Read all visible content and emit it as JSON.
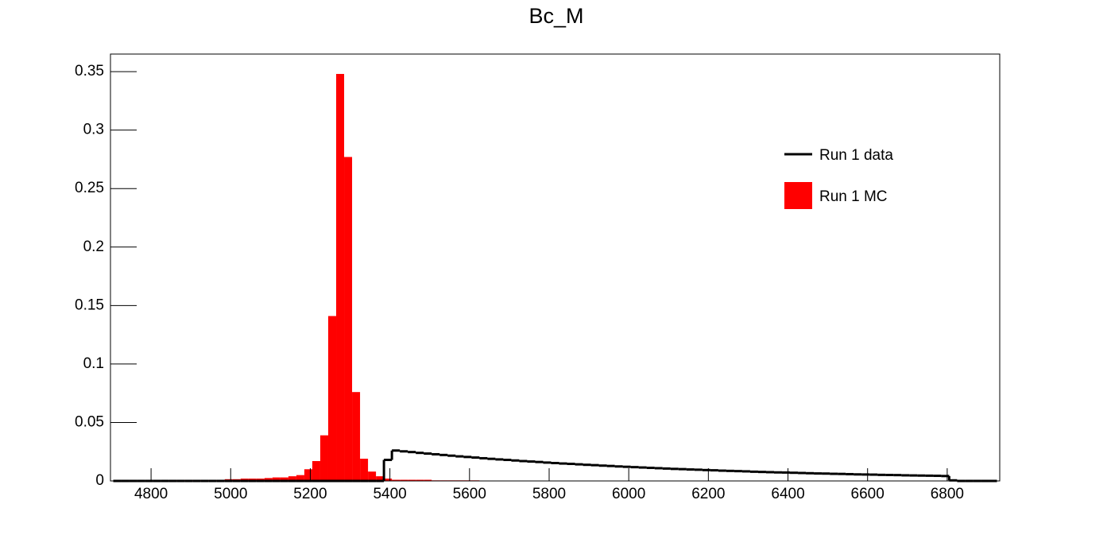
{
  "chart_data": {
    "type": "histogram",
    "title": "Bc_M",
    "bins": [
      4705,
      4725,
      4745,
      4765,
      4785,
      4805,
      4825,
      4845,
      4865,
      4885,
      4905,
      4925,
      4945,
      4965,
      4985,
      5005,
      5025,
      5045,
      5065,
      5085,
      5105,
      5125,
      5145,
      5165,
      5185,
      5205,
      5225,
      5245,
      5265,
      5285,
      5305,
      5325,
      5345,
      5365,
      5385,
      5405,
      5425,
      5445,
      5465,
      5485,
      5505,
      5525,
      5545,
      5565,
      5585,
      5605,
      5625,
      5645,
      5665,
      5685,
      5705,
      5725,
      5745,
      5765,
      5785,
      5805,
      5825,
      5845,
      5865,
      5885,
      5905,
      5925,
      5945,
      5965,
      5985,
      6005,
      6025,
      6045,
      6065,
      6085,
      6105,
      6125,
      6145,
      6165,
      6185,
      6205,
      6225,
      6245,
      6265,
      6285,
      6305,
      6325,
      6345,
      6365,
      6385,
      6405,
      6425,
      6445,
      6465,
      6485,
      6505,
      6525,
      6545,
      6565,
      6585,
      6605,
      6625,
      6645,
      6665,
      6685,
      6705,
      6725,
      6745,
      6765,
      6785,
      6805,
      6825,
      6845,
      6865,
      6885,
      6905,
      6925
    ],
    "series": [
      {
        "name": "Run 1 data",
        "color": "#000000",
        "style": "step",
        "values": [
          0,
          0,
          0,
          0,
          0,
          0,
          0,
          0,
          0,
          0,
          0,
          0,
          0,
          0,
          0,
          0,
          0,
          0,
          0,
          0,
          0,
          0,
          0,
          0,
          0,
          0,
          0,
          0,
          0,
          0,
          0,
          0,
          0,
          0,
          0.018,
          0.026,
          0.0253,
          0.0247,
          0.024,
          0.0234,
          0.0228,
          0.0222,
          0.0216,
          0.021,
          0.0205,
          0.02,
          0.0194,
          0.0189,
          0.0184,
          0.018,
          0.0175,
          0.017,
          0.0166,
          0.0162,
          0.0157,
          0.0153,
          0.0149,
          0.0146,
          0.0142,
          0.0138,
          0.0135,
          0.0131,
          0.0128,
          0.0124,
          0.0121,
          0.0118,
          0.0115,
          0.0112,
          0.0109,
          0.0106,
          0.0103,
          0.0101,
          0.0098,
          0.0096,
          0.0093,
          0.0091,
          0.0088,
          0.0086,
          0.0084,
          0.0082,
          0.0079,
          0.0077,
          0.0075,
          0.0073,
          0.0072,
          0.007,
          0.0068,
          0.0066,
          0.0064,
          0.0063,
          0.0061,
          0.006,
          0.0058,
          0.0056,
          0.0055,
          0.0054,
          0.0052,
          0.0051,
          0.005,
          0.0048,
          0.0047,
          0.0046,
          0.0045,
          0.0044,
          0.0042,
          0.0005,
          0,
          0,
          0,
          0,
          0
        ]
      },
      {
        "name": "Run 1 MC",
        "color": "#ff0000",
        "style": "filled",
        "values": [
          0,
          0,
          0,
          0,
          0,
          0,
          0.0005,
          0.0005,
          0.001,
          0.001,
          0.001,
          0.001,
          0.001,
          0.001,
          0.0015,
          0.0015,
          0.002,
          0.002,
          0.002,
          0.0025,
          0.003,
          0.003,
          0.004,
          0.005,
          0.01,
          0.017,
          0.039,
          0.141,
          0.348,
          0.277,
          0.076,
          0.019,
          0.008,
          0.004,
          0.002,
          0.001,
          0.001,
          0.001,
          0.001,
          0.001,
          0.0005,
          0.0005,
          0.0005,
          0.0005,
          0.0005,
          0.0005,
          0,
          0,
          0,
          0,
          0,
          0,
          0,
          0,
          0,
          0,
          0,
          0,
          0,
          0,
          0,
          0,
          0,
          0,
          0,
          0,
          0,
          0,
          0,
          0,
          0,
          0,
          0,
          0,
          0,
          0,
          0,
          0,
          0,
          0,
          0,
          0,
          0,
          0,
          0,
          0,
          0,
          0,
          0,
          0,
          0,
          0,
          0,
          0,
          0,
          0,
          0,
          0,
          0,
          0,
          0,
          0,
          0,
          0,
          0,
          0,
          0,
          0,
          0,
          0,
          0
        ]
      }
    ],
    "xlim": [
      4698,
      6932
    ],
    "xticks": [
      4800,
      5000,
      5200,
      5400,
      5600,
      5800,
      6000,
      6200,
      6400,
      6600,
      6800
    ],
    "ylim": [
      0,
      0.365
    ],
    "yticks": [
      0,
      0.05,
      0.1,
      0.15,
      0.2,
      0.25,
      0.3,
      0.35
    ]
  }
}
